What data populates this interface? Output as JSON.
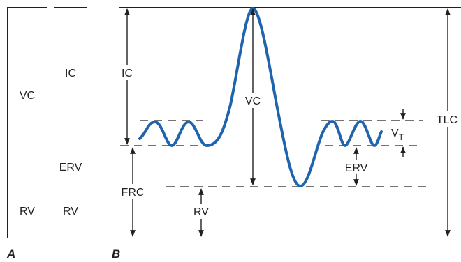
{
  "panel_a": {
    "label": "A",
    "column_1": {
      "upper": "VC",
      "lower": "RV"
    },
    "column_2": {
      "upper": "IC",
      "middle": "ERV",
      "lower": "RV"
    }
  },
  "panel_b": {
    "label": "B",
    "labels": {
      "ic": "IC",
      "frc": "FRC",
      "rv": "RV",
      "vc": "VC",
      "tlc": "TLC",
      "erv": "ERV",
      "vt_main": "V",
      "vt_sub": "T"
    }
  },
  "colors": {
    "curve": "#1f64ad",
    "ink": "#231f20"
  }
}
